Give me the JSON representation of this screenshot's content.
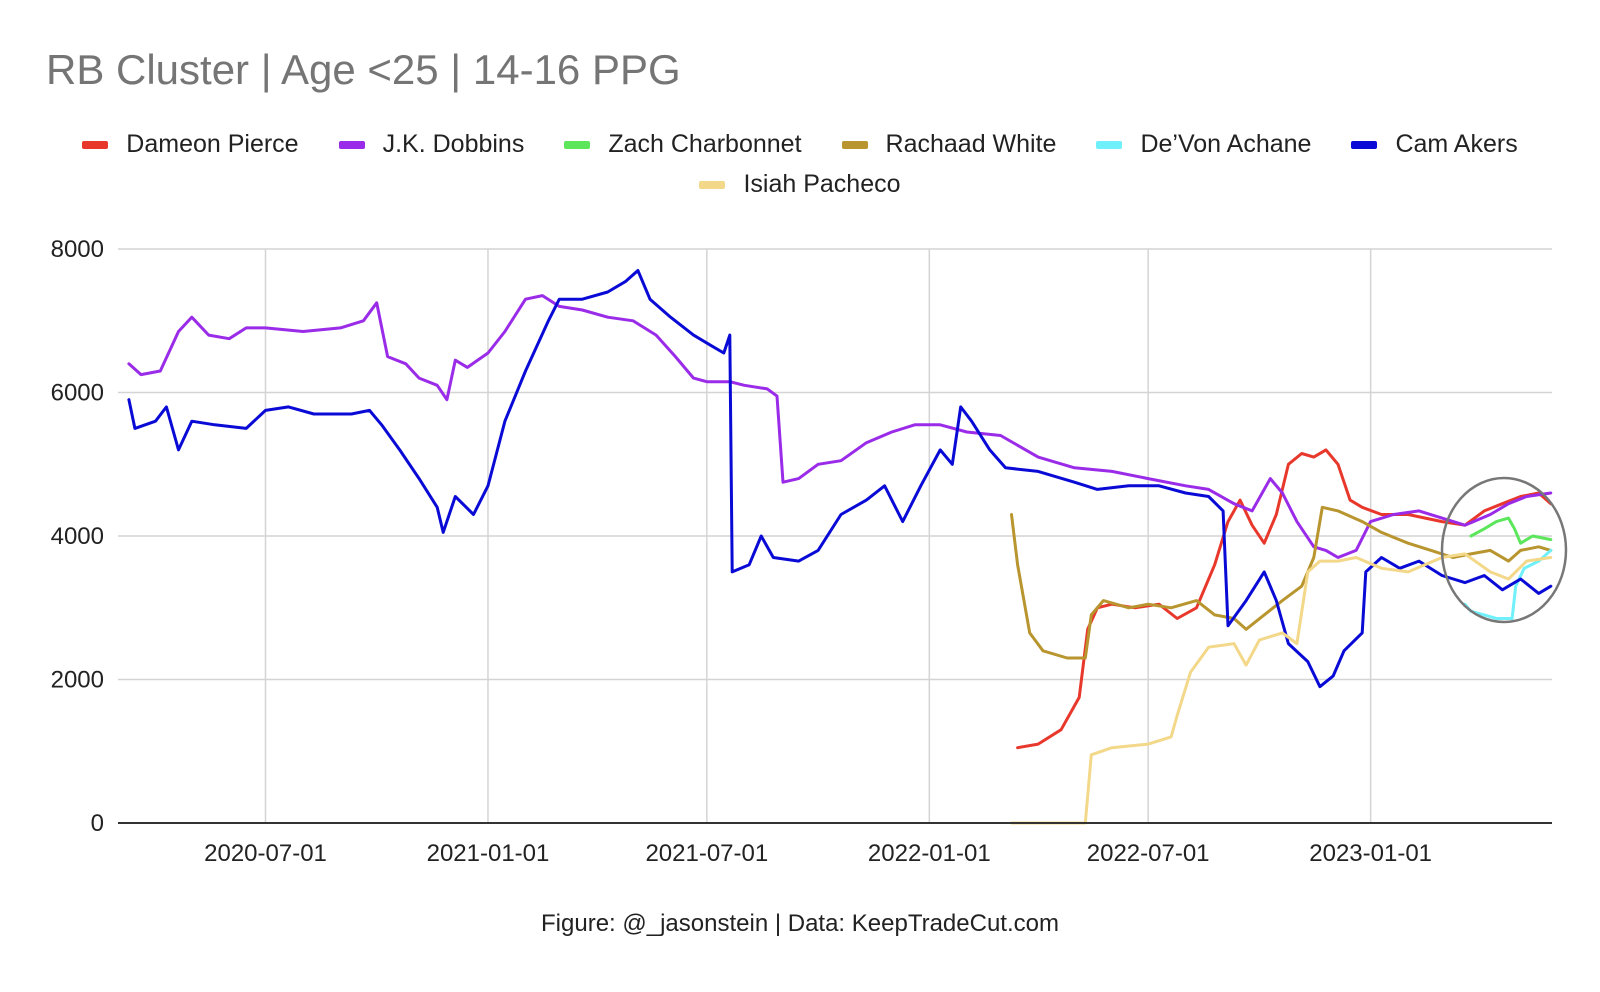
{
  "chart_data": {
    "type": "line",
    "title": "RB Cluster | Age <25 | 14-16 PPG",
    "footer": "Figure: @_jasonstein | Data: KeepTradeCut.com",
    "xlabel": "",
    "ylabel": "",
    "x_range": [
      "2020-03-01",
      "2023-05-31"
    ],
    "ylim": [
      0,
      8000
    ],
    "y_ticks": [
      {
        "value": 0,
        "label": "0"
      },
      {
        "value": 2000,
        "label": "2000"
      },
      {
        "value": 4000,
        "label": "4000"
      },
      {
        "value": 6000,
        "label": "6000"
      },
      {
        "value": 8000,
        "label": "8000"
      }
    ],
    "x_ticks": [
      {
        "date": "2020-07-01",
        "label": "2020-07-01"
      },
      {
        "date": "2021-01-01",
        "label": "2021-01-01"
      },
      {
        "date": "2021-07-01",
        "label": "2021-07-01"
      },
      {
        "date": "2022-01-01",
        "label": "2022-01-01"
      },
      {
        "date": "2022-07-01",
        "label": "2022-07-01"
      },
      {
        "date": "2023-01-01",
        "label": "2023-01-01"
      }
    ],
    "grid": true,
    "legend_position": "top",
    "annotation": "circle around 2023-04 to 2023-05 region",
    "series": [
      {
        "name": "Dameon Pierce",
        "color": "#e8382c",
        "points": [
          [
            "2022-03-15",
            1050
          ],
          [
            "2022-04-01",
            1100
          ],
          [
            "2022-04-20",
            1300
          ],
          [
            "2022-05-05",
            1750
          ],
          [
            "2022-05-12",
            2700
          ],
          [
            "2022-05-20",
            3000
          ],
          [
            "2022-06-01",
            3050
          ],
          [
            "2022-06-20",
            3000
          ],
          [
            "2022-07-10",
            3050
          ],
          [
            "2022-07-25",
            2850
          ],
          [
            "2022-08-10",
            3000
          ],
          [
            "2022-08-25",
            3600
          ],
          [
            "2022-09-05",
            4200
          ],
          [
            "2022-09-15",
            4500
          ],
          [
            "2022-09-25",
            4150
          ],
          [
            "2022-10-05",
            3900
          ],
          [
            "2022-10-15",
            4300
          ],
          [
            "2022-10-25",
            5000
          ],
          [
            "2022-11-05",
            5150
          ],
          [
            "2022-11-15",
            5100
          ],
          [
            "2022-11-25",
            5200
          ],
          [
            "2022-12-05",
            5000
          ],
          [
            "2022-12-15",
            4500
          ],
          [
            "2022-12-25",
            4400
          ],
          [
            "2023-01-10",
            4300
          ],
          [
            "2023-02-01",
            4300
          ],
          [
            "2023-03-01",
            4200
          ],
          [
            "2023-03-20",
            4150
          ],
          [
            "2023-04-05",
            4350
          ],
          [
            "2023-04-20",
            4450
          ],
          [
            "2023-05-05",
            4550
          ],
          [
            "2023-05-20",
            4600
          ],
          [
            "2023-05-30",
            4450
          ]
        ]
      },
      {
        "name": "J.K. Dobbins",
        "color": "#9a2be8",
        "points": [
          [
            "2020-03-10",
            6400
          ],
          [
            "2020-03-20",
            6250
          ],
          [
            "2020-04-05",
            6300
          ],
          [
            "2020-04-20",
            6850
          ],
          [
            "2020-05-01",
            7050
          ],
          [
            "2020-05-15",
            6800
          ],
          [
            "2020-06-01",
            6750
          ],
          [
            "2020-06-15",
            6900
          ],
          [
            "2020-07-01",
            6900
          ],
          [
            "2020-08-01",
            6850
          ],
          [
            "2020-09-01",
            6900
          ],
          [
            "2020-09-20",
            7000
          ],
          [
            "2020-10-01",
            7250
          ],
          [
            "2020-10-10",
            6500
          ],
          [
            "2020-10-25",
            6400
          ],
          [
            "2020-11-05",
            6200
          ],
          [
            "2020-11-20",
            6100
          ],
          [
            "2020-11-28",
            5900
          ],
          [
            "2020-12-05",
            6450
          ],
          [
            "2020-12-15",
            6350
          ],
          [
            "2021-01-01",
            6550
          ],
          [
            "2021-01-15",
            6850
          ],
          [
            "2021-02-01",
            7300
          ],
          [
            "2021-02-15",
            7350
          ],
          [
            "2021-03-01",
            7200
          ],
          [
            "2021-03-20",
            7150
          ],
          [
            "2021-04-10",
            7050
          ],
          [
            "2021-05-01",
            7000
          ],
          [
            "2021-05-20",
            6800
          ],
          [
            "2021-06-05",
            6500
          ],
          [
            "2021-06-20",
            6200
          ],
          [
            "2021-07-01",
            6150
          ],
          [
            "2021-07-20",
            6150
          ],
          [
            "2021-08-01",
            6100
          ],
          [
            "2021-08-20",
            6050
          ],
          [
            "2021-08-28",
            5950
          ],
          [
            "2021-09-02",
            4750
          ],
          [
            "2021-09-15",
            4800
          ],
          [
            "2021-10-01",
            5000
          ],
          [
            "2021-10-20",
            5050
          ],
          [
            "2021-11-10",
            5300
          ],
          [
            "2021-12-01",
            5450
          ],
          [
            "2021-12-20",
            5550
          ],
          [
            "2022-01-10",
            5550
          ],
          [
            "2022-02-01",
            5450
          ],
          [
            "2022-03-01",
            5400
          ],
          [
            "2022-04-01",
            5100
          ],
          [
            "2022-05-01",
            4950
          ],
          [
            "2022-06-01",
            4900
          ],
          [
            "2022-07-01",
            4800
          ],
          [
            "2022-08-01",
            4700
          ],
          [
            "2022-08-20",
            4650
          ],
          [
            "2022-09-10",
            4450
          ],
          [
            "2022-09-25",
            4350
          ],
          [
            "2022-10-10",
            4800
          ],
          [
            "2022-10-20",
            4600
          ],
          [
            "2022-11-01",
            4200
          ],
          [
            "2022-11-15",
            3850
          ],
          [
            "2022-11-25",
            3800
          ],
          [
            "2022-12-05",
            3700
          ],
          [
            "2022-12-20",
            3800
          ],
          [
            "2023-01-01",
            4200
          ],
          [
            "2023-01-20",
            4300
          ],
          [
            "2023-02-10",
            4350
          ],
          [
            "2023-03-01",
            4250
          ],
          [
            "2023-03-20",
            4150
          ],
          [
            "2023-04-10",
            4300
          ],
          [
            "2023-04-25",
            4450
          ],
          [
            "2023-05-10",
            4550
          ],
          [
            "2023-05-30",
            4600
          ]
        ]
      },
      {
        "name": "Zach Charbonnet",
        "color": "#5ce65c",
        "points": [
          [
            "2023-03-25",
            4000
          ],
          [
            "2023-04-05",
            4100
          ],
          [
            "2023-04-15",
            4200
          ],
          [
            "2023-04-25",
            4250
          ],
          [
            "2023-04-30",
            4100
          ],
          [
            "2023-05-05",
            3900
          ],
          [
            "2023-05-15",
            4000
          ],
          [
            "2023-05-30",
            3950
          ]
        ]
      },
      {
        "name": "Rachaad White",
        "color": "#b8952e",
        "points": [
          [
            "2022-03-10",
            4300
          ],
          [
            "2022-03-15",
            3600
          ],
          [
            "2022-03-25",
            2650
          ],
          [
            "2022-04-05",
            2400
          ],
          [
            "2022-04-25",
            2300
          ],
          [
            "2022-05-10",
            2300
          ],
          [
            "2022-05-15",
            2900
          ],
          [
            "2022-05-25",
            3100
          ],
          [
            "2022-06-15",
            3000
          ],
          [
            "2022-07-01",
            3050
          ],
          [
            "2022-07-20",
            3000
          ],
          [
            "2022-08-10",
            3100
          ],
          [
            "2022-08-25",
            2900
          ],
          [
            "2022-09-10",
            2850
          ],
          [
            "2022-09-20",
            2700
          ],
          [
            "2022-10-05",
            2900
          ],
          [
            "2022-10-20",
            3100
          ],
          [
            "2022-11-05",
            3300
          ],
          [
            "2022-11-15",
            3700
          ],
          [
            "2022-11-22",
            4400
          ],
          [
            "2022-12-05",
            4350
          ],
          [
            "2022-12-25",
            4200
          ],
          [
            "2023-01-10",
            4050
          ],
          [
            "2023-02-01",
            3900
          ],
          [
            "2023-02-20",
            3800
          ],
          [
            "2023-03-10",
            3700
          ],
          [
            "2023-03-25",
            3750
          ],
          [
            "2023-04-10",
            3800
          ],
          [
            "2023-04-25",
            3650
          ],
          [
            "2023-05-05",
            3800
          ],
          [
            "2023-05-20",
            3850
          ],
          [
            "2023-05-30",
            3800
          ]
        ]
      },
      {
        "name": "De’Von Achane",
        "color": "#6ff0fa",
        "points": [
          [
            "2023-03-20",
            3050
          ],
          [
            "2023-03-25",
            2950
          ],
          [
            "2023-04-05",
            2900
          ],
          [
            "2023-04-15",
            2850
          ],
          [
            "2023-04-28",
            2850
          ],
          [
            "2023-05-01",
            3300
          ],
          [
            "2023-05-08",
            3550
          ],
          [
            "2023-05-20",
            3650
          ],
          [
            "2023-05-30",
            3800
          ]
        ]
      },
      {
        "name": "Cam Akers",
        "color": "#0a0ad6",
        "points": [
          [
            "2020-03-10",
            5900
          ],
          [
            "2020-03-15",
            5500
          ],
          [
            "2020-04-01",
            5600
          ],
          [
            "2020-04-10",
            5800
          ],
          [
            "2020-04-20",
            5200
          ],
          [
            "2020-05-01",
            5600
          ],
          [
            "2020-05-20",
            5550
          ],
          [
            "2020-06-15",
            5500
          ],
          [
            "2020-07-01",
            5750
          ],
          [
            "2020-07-20",
            5800
          ],
          [
            "2020-08-10",
            5700
          ],
          [
            "2020-09-10",
            5700
          ],
          [
            "2020-09-25",
            5750
          ],
          [
            "2020-10-05",
            5550
          ],
          [
            "2020-10-20",
            5200
          ],
          [
            "2020-11-05",
            4800
          ],
          [
            "2020-11-20",
            4400
          ],
          [
            "2020-11-25",
            4050
          ],
          [
            "2020-12-05",
            4550
          ],
          [
            "2020-12-20",
            4300
          ],
          [
            "2021-01-01",
            4700
          ],
          [
            "2021-01-15",
            5600
          ],
          [
            "2021-02-01",
            6300
          ],
          [
            "2021-02-20",
            7000
          ],
          [
            "2021-03-01",
            7300
          ],
          [
            "2021-03-20",
            7300
          ],
          [
            "2021-04-10",
            7400
          ],
          [
            "2021-04-25",
            7550
          ],
          [
            "2021-05-05",
            7700
          ],
          [
            "2021-05-15",
            7300
          ],
          [
            "2021-06-01",
            7050
          ],
          [
            "2021-06-20",
            6800
          ],
          [
            "2021-07-05",
            6650
          ],
          [
            "2021-07-15",
            6550
          ],
          [
            "2021-07-20",
            6800
          ],
          [
            "2021-07-22",
            3500
          ],
          [
            "2021-08-05",
            3600
          ],
          [
            "2021-08-15",
            4000
          ],
          [
            "2021-08-25",
            3700
          ],
          [
            "2021-09-15",
            3650
          ],
          [
            "2021-10-01",
            3800
          ],
          [
            "2021-10-20",
            4300
          ],
          [
            "2021-11-10",
            4500
          ],
          [
            "2021-11-25",
            4700
          ],
          [
            "2021-12-10",
            4200
          ],
          [
            "2021-12-25",
            4700
          ],
          [
            "2022-01-10",
            5200
          ],
          [
            "2022-01-20",
            5000
          ],
          [
            "2022-01-27",
            5800
          ],
          [
            "2022-02-05",
            5600
          ],
          [
            "2022-02-20",
            5200
          ],
          [
            "2022-03-05",
            4950
          ],
          [
            "2022-04-01",
            4900
          ],
          [
            "2022-05-01",
            4750
          ],
          [
            "2022-05-20",
            4650
          ],
          [
            "2022-06-15",
            4700
          ],
          [
            "2022-07-10",
            4700
          ],
          [
            "2022-08-01",
            4600
          ],
          [
            "2022-08-20",
            4550
          ],
          [
            "2022-09-01",
            4350
          ],
          [
            "2022-09-05",
            2750
          ],
          [
            "2022-09-20",
            3100
          ],
          [
            "2022-10-05",
            3500
          ],
          [
            "2022-10-15",
            3100
          ],
          [
            "2022-10-25",
            2500
          ],
          [
            "2022-11-10",
            2250
          ],
          [
            "2022-11-20",
            1900
          ],
          [
            "2022-12-01",
            2050
          ],
          [
            "2022-12-10",
            2400
          ],
          [
            "2022-12-25",
            2650
          ],
          [
            "2022-12-28",
            3500
          ],
          [
            "2023-01-10",
            3700
          ],
          [
            "2023-01-25",
            3550
          ],
          [
            "2023-02-10",
            3650
          ],
          [
            "2023-03-01",
            3450
          ],
          [
            "2023-03-20",
            3350
          ],
          [
            "2023-04-05",
            3450
          ],
          [
            "2023-04-20",
            3250
          ],
          [
            "2023-05-05",
            3400
          ],
          [
            "2023-05-20",
            3200
          ],
          [
            "2023-05-30",
            3300
          ]
        ]
      },
      {
        "name": "Isiah Pacheco",
        "color": "#f3d88a",
        "points": [
          [
            "2022-03-10",
            0
          ],
          [
            "2022-05-10",
            0
          ],
          [
            "2022-05-15",
            950
          ],
          [
            "2022-06-01",
            1050
          ],
          [
            "2022-07-01",
            1100
          ],
          [
            "2022-07-20",
            1200
          ],
          [
            "2022-07-25",
            1500
          ],
          [
            "2022-08-05",
            2100
          ],
          [
            "2022-08-20",
            2450
          ],
          [
            "2022-09-10",
            2500
          ],
          [
            "2022-09-20",
            2200
          ],
          [
            "2022-10-01",
            2550
          ],
          [
            "2022-10-20",
            2650
          ],
          [
            "2022-11-01",
            2500
          ],
          [
            "2022-11-10",
            3500
          ],
          [
            "2022-11-20",
            3650
          ],
          [
            "2022-12-05",
            3650
          ],
          [
            "2022-12-20",
            3700
          ],
          [
            "2023-01-10",
            3550
          ],
          [
            "2023-02-01",
            3500
          ],
          [
            "2023-03-01",
            3700
          ],
          [
            "2023-03-20",
            3750
          ],
          [
            "2023-04-10",
            3500
          ],
          [
            "2023-04-25",
            3400
          ],
          [
            "2023-05-10",
            3650
          ],
          [
            "2023-05-30",
            3700
          ]
        ]
      }
    ]
  }
}
